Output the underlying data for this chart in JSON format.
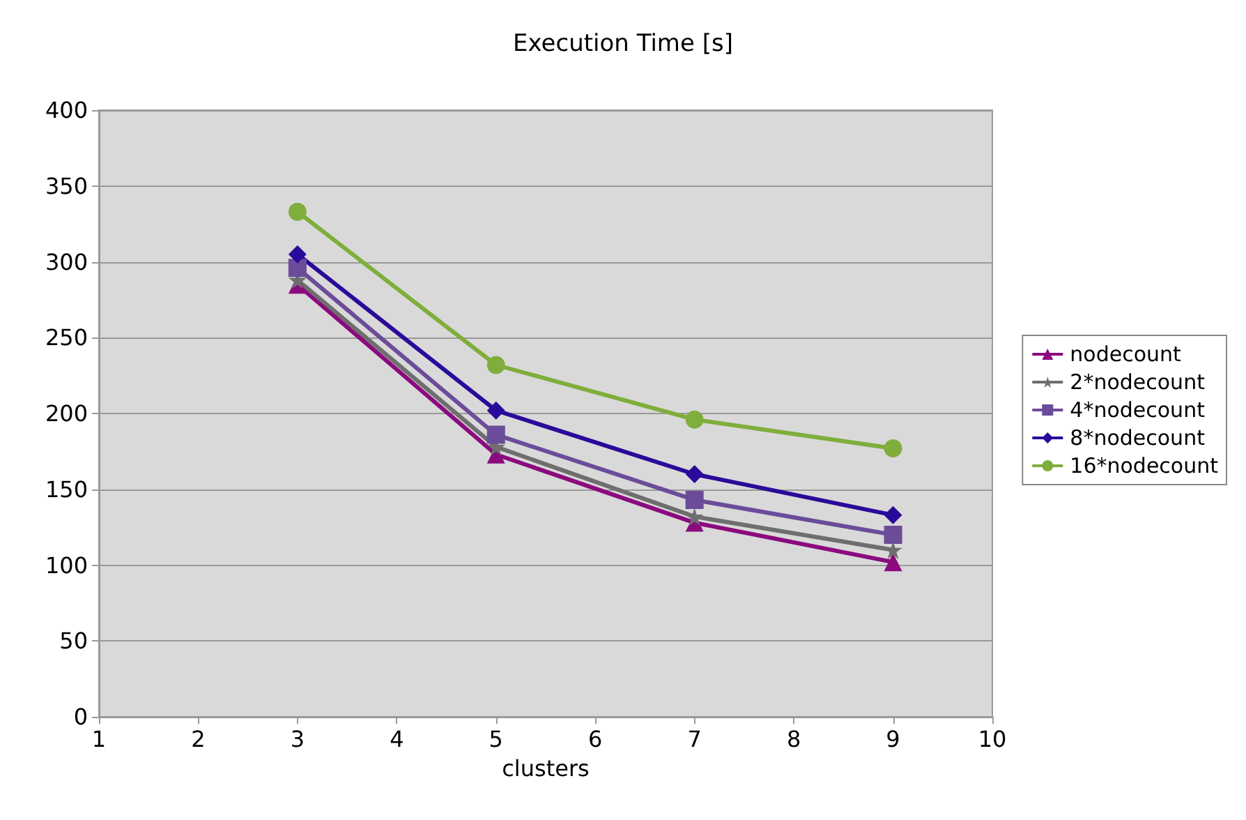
{
  "chart_data": {
    "type": "line",
    "title": "Execution Time [s]",
    "xlabel": "clusters",
    "x": [
      3,
      5,
      7,
      9
    ],
    "series": [
      {
        "name": "nodecount",
        "color": "#8b0a7e",
        "marker": "triangle",
        "values": [
          285,
          173,
          128,
          102
        ]
      },
      {
        "name": "2*nodecount",
        "color": "#6e6e6e",
        "marker": "star",
        "values": [
          288,
          178,
          132,
          110
        ]
      },
      {
        "name": "4*nodecount",
        "color": "#6b4c9a",
        "marker": "square",
        "values": [
          296,
          186,
          143,
          120
        ]
      },
      {
        "name": "8*nodecount",
        "color": "#2a0a9a",
        "marker": "diamond",
        "values": [
          305,
          202,
          160,
          133
        ]
      },
      {
        "name": "16*nodecount",
        "color": "#7fae3c",
        "marker": "circle",
        "values": [
          333,
          232,
          196,
          177
        ]
      }
    ],
    "xlim": [
      1,
      10
    ],
    "xticks": [
      1,
      2,
      3,
      4,
      5,
      6,
      7,
      8,
      9,
      10
    ],
    "ylim": [
      0,
      400
    ],
    "yticks": [
      0,
      50,
      100,
      150,
      200,
      250,
      300,
      350,
      400
    ],
    "grid": "y",
    "legend": "right",
    "line_style": "solid"
  }
}
